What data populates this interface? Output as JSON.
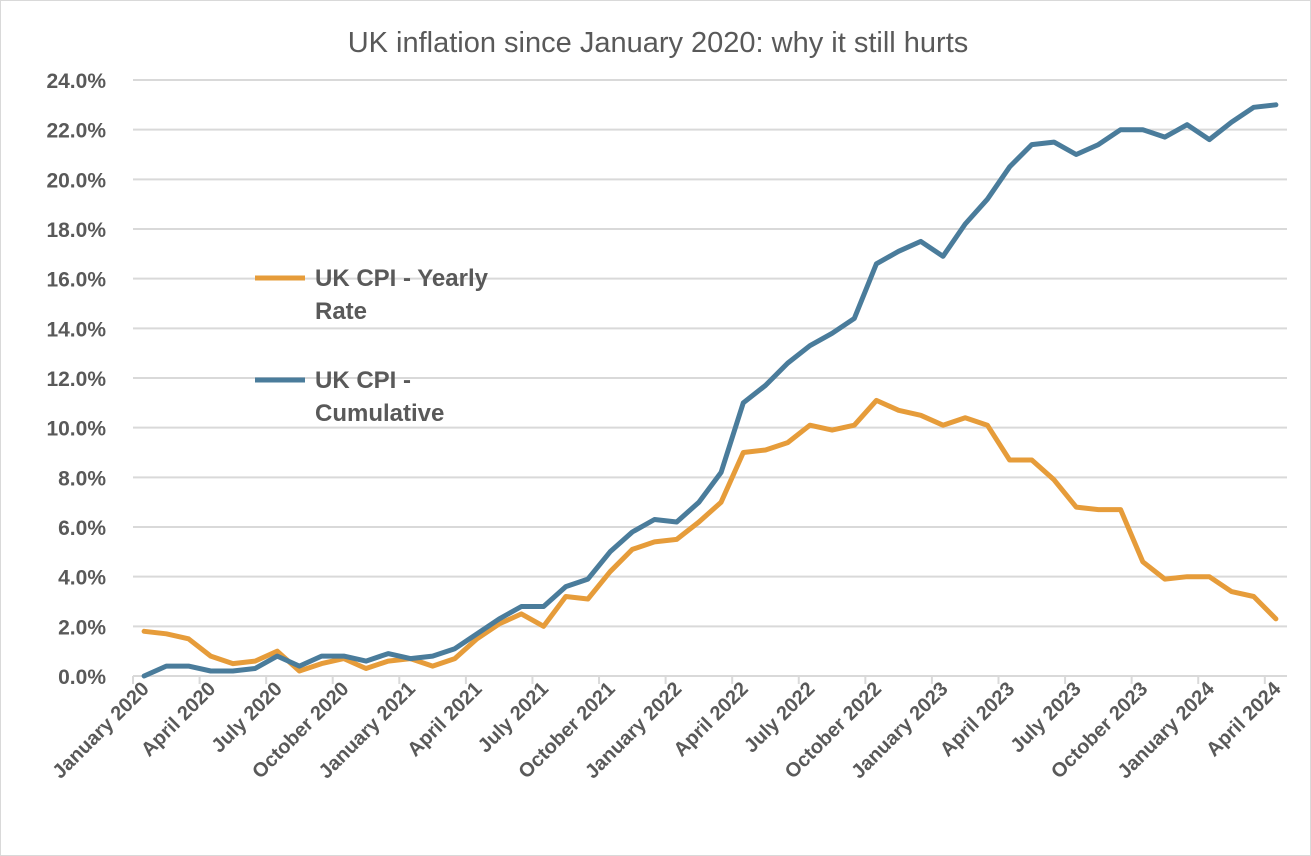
{
  "chart_data": {
    "type": "line",
    "title": "UK inflation since January 2020: why it still hurts",
    "xlabel": "",
    "ylabel": "",
    "ylim": [
      0,
      24
    ],
    "y_ticks": [
      "0.0%",
      "2.0%",
      "4.0%",
      "6.0%",
      "8.0%",
      "10.0%",
      "12.0%",
      "14.0%",
      "16.0%",
      "18.0%",
      "20.0%",
      "22.0%",
      "24.0%"
    ],
    "grid": true,
    "legend_placement": "center-left",
    "x_tick_labels": [
      "January 2020",
      "April 2020",
      "July 2020",
      "October 2020",
      "January 2021",
      "April 2021",
      "July 2021",
      "October 2021",
      "January 2022",
      "April 2022",
      "July 2022",
      "October 2022",
      "January 2023",
      "April 2023",
      "July 2023",
      "October 2023",
      "January 2024",
      "April 2024"
    ],
    "months_count": 52,
    "series": [
      {
        "name": "UK CPI - Yearly Rate",
        "legend_lines": [
          "UK CPI - Yearly",
          "Rate"
        ],
        "color": "#E69C3A",
        "values": [
          1.8,
          1.7,
          1.5,
          0.8,
          0.5,
          0.6,
          1.0,
          0.2,
          0.5,
          0.7,
          0.3,
          0.6,
          0.7,
          0.4,
          0.7,
          1.5,
          2.1,
          2.5,
          2.0,
          3.2,
          3.1,
          4.2,
          5.1,
          5.4,
          5.5,
          6.2,
          7.0,
          9.0,
          9.1,
          9.4,
          10.1,
          9.9,
          10.1,
          11.1,
          10.7,
          10.5,
          10.1,
          10.4,
          10.1,
          8.7,
          8.7,
          7.9,
          6.8,
          6.7,
          6.7,
          4.6,
          3.9,
          4.0,
          4.0,
          3.4,
          3.2,
          2.3
        ]
      },
      {
        "name": "UK CPI - Cumulative",
        "legend_lines": [
          "UK CPI -",
          "Cumulative"
        ],
        "color": "#4A7C9B",
        "values": [
          0.0,
          0.4,
          0.4,
          0.2,
          0.2,
          0.3,
          0.8,
          0.4,
          0.8,
          0.8,
          0.6,
          0.9,
          0.7,
          0.8,
          1.1,
          1.7,
          2.3,
          2.8,
          2.8,
          3.6,
          3.9,
          5.0,
          5.8,
          6.3,
          6.2,
          7.0,
          8.2,
          11.0,
          11.7,
          12.6,
          13.3,
          13.8,
          14.4,
          16.6,
          17.1,
          17.5,
          16.9,
          18.2,
          19.2,
          20.5,
          21.4,
          21.5,
          21.0,
          21.4,
          22.0,
          22.0,
          21.7,
          22.2,
          21.6,
          22.3,
          22.9,
          23.0
        ]
      }
    ]
  }
}
